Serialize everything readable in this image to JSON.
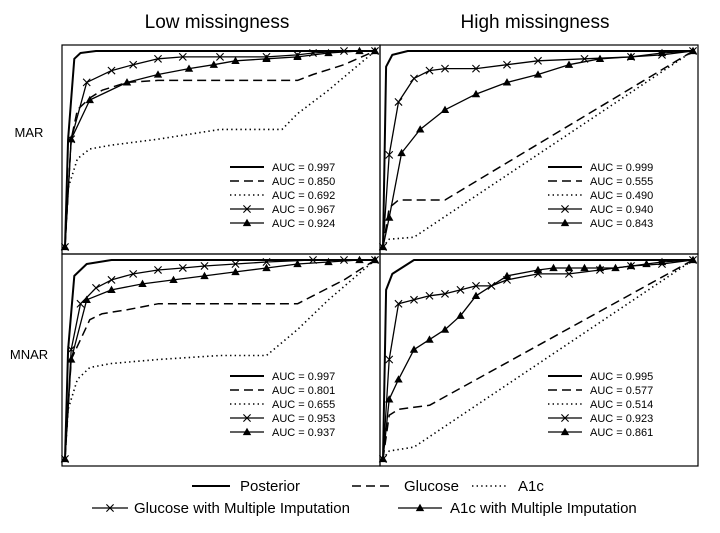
{
  "column_titles": [
    "Low missingness",
    "High missingness"
  ],
  "row_labels": [
    "MAR",
    "MNAR"
  ],
  "legend": {
    "row1": [
      "Posterior",
      "Glucose",
      "A1c"
    ],
    "row2": [
      "Glucose with Multiple Imputation",
      "A1c with Multiple Imputation"
    ]
  },
  "styles": {
    "line_color": "#000000",
    "series_styles": [
      "solid",
      "dashed",
      "dotted",
      "solid-cross",
      "solid-triangle"
    ]
  },
  "chart_data": [
    {
      "type": "line",
      "row": "MAR",
      "column": "Low missingness",
      "xlim": [
        0,
        1
      ],
      "ylim": [
        0,
        1
      ],
      "auc_labels": [
        "AUC = 0.997",
        "AUC = 0.850",
        "AUC = 0.692",
        "AUC = 0.967",
        "AUC = 0.924"
      ],
      "series": [
        {
          "name": "Posterior",
          "style": "solid",
          "x": [
            0,
            0.01,
            0.03,
            0.05,
            0.1,
            1
          ],
          "y": [
            0,
            0.55,
            0.96,
            0.99,
            1,
            1
          ]
        },
        {
          "name": "Glucose",
          "style": "dashed",
          "x": [
            0,
            0.02,
            0.04,
            0.08,
            0.12,
            0.2,
            0.3,
            0.5,
            0.75,
            0.8,
            0.9,
            1
          ],
          "y": [
            0,
            0.55,
            0.7,
            0.76,
            0.8,
            0.84,
            0.85,
            0.85,
            0.85,
            0.88,
            0.93,
            1
          ]
        },
        {
          "name": "A1c",
          "style": "dotted",
          "x": [
            0,
            0.01,
            0.04,
            0.08,
            0.15,
            0.3,
            0.5,
            0.7,
            0.75,
            0.85,
            1
          ],
          "y": [
            0,
            0.3,
            0.45,
            0.5,
            0.52,
            0.55,
            0.6,
            0.6,
            0.68,
            0.8,
            1
          ]
        },
        {
          "name": "Glucose with Multiple Imputation",
          "style": "solid-cross",
          "x": [
            0,
            0.02,
            0.07,
            0.15,
            0.22,
            0.3,
            0.38,
            0.5,
            0.65,
            0.75,
            0.8,
            0.9,
            1
          ],
          "y": [
            0,
            0.55,
            0.84,
            0.9,
            0.93,
            0.96,
            0.97,
            0.97,
            0.97,
            0.98,
            0.99,
            1,
            1
          ]
        },
        {
          "name": "A1c with Multiple Imputation",
          "style": "solid-triangle",
          "x": [
            0,
            0.02,
            0.08,
            0.2,
            0.3,
            0.4,
            0.48,
            0.55,
            0.65,
            0.75,
            0.85,
            0.95,
            1
          ],
          "y": [
            0,
            0.55,
            0.75,
            0.84,
            0.88,
            0.91,
            0.93,
            0.95,
            0.96,
            0.97,
            0.99,
            1,
            1
          ]
        }
      ]
    },
    {
      "type": "line",
      "row": "MAR",
      "column": "High missingness",
      "xlim": [
        0,
        1
      ],
      "ylim": [
        0,
        1
      ],
      "auc_labels": [
        "AUC = 0.999",
        "AUC = 0.555",
        "AUC = 0.490",
        "AUC = 0.940",
        "AUC = 0.843"
      ],
      "series": [
        {
          "name": "Posterior",
          "style": "solid",
          "x": [
            0,
            0.01,
            0.03,
            0.08,
            1
          ],
          "y": [
            0,
            0.92,
            0.98,
            1,
            1
          ]
        },
        {
          "name": "Glucose",
          "style": "dashed",
          "x": [
            0,
            0.02,
            0.05,
            0.2,
            1
          ],
          "y": [
            0,
            0.2,
            0.24,
            0.24,
            1
          ]
        },
        {
          "name": "A1c",
          "style": "dotted",
          "x": [
            0,
            0.02,
            0.1,
            1
          ],
          "y": [
            0,
            0.04,
            0.05,
            1
          ]
        },
        {
          "name": "Glucose with Multiple Imputation",
          "style": "solid-cross",
          "x": [
            0,
            0.02,
            0.05,
            0.1,
            0.15,
            0.2,
            0.3,
            0.4,
            0.5,
            0.65,
            0.8,
            0.9,
            1
          ],
          "y": [
            0,
            0.47,
            0.74,
            0.86,
            0.9,
            0.91,
            0.91,
            0.93,
            0.95,
            0.96,
            0.97,
            0.98,
            1
          ]
        },
        {
          "name": "A1c with Multiple Imputation",
          "style": "solid-triangle",
          "x": [
            0,
            0.02,
            0.06,
            0.12,
            0.2,
            0.3,
            0.4,
            0.5,
            0.6,
            0.7,
            0.8,
            0.9,
            1
          ],
          "y": [
            0,
            0.15,
            0.48,
            0.6,
            0.7,
            0.78,
            0.84,
            0.88,
            0.93,
            0.96,
            0.97,
            0.99,
            1
          ]
        }
      ]
    },
    {
      "type": "line",
      "row": "MNAR",
      "column": "Low missingness",
      "xlim": [
        0,
        1
      ],
      "ylim": [
        0,
        1
      ],
      "auc_labels": [
        "AUC = 0.997",
        "AUC = 0.801",
        "AUC = 0.655",
        "AUC = 0.953",
        "AUC = 0.937"
      ],
      "series": [
        {
          "name": "Posterior",
          "style": "solid",
          "x": [
            0,
            0.01,
            0.03,
            0.07,
            0.15,
            1
          ],
          "y": [
            0,
            0.55,
            0.92,
            0.98,
            1,
            1
          ]
        },
        {
          "name": "Glucose",
          "style": "dashed",
          "x": [
            0,
            0.02,
            0.05,
            0.08,
            0.12,
            0.2,
            0.3,
            0.5,
            0.75,
            0.8,
            0.9,
            1
          ],
          "y": [
            0,
            0.5,
            0.6,
            0.7,
            0.73,
            0.75,
            0.78,
            0.78,
            0.78,
            0.82,
            0.9,
            1
          ]
        },
        {
          "name": "A1c",
          "style": "dotted",
          "x": [
            0,
            0.01,
            0.04,
            0.08,
            0.15,
            0.3,
            0.5,
            0.65,
            0.75,
            0.85,
            1
          ],
          "y": [
            0,
            0.25,
            0.4,
            0.46,
            0.48,
            0.5,
            0.52,
            0.52,
            0.65,
            0.8,
            1
          ]
        },
        {
          "name": "Glucose with Multiple Imputation",
          "style": "solid-cross",
          "x": [
            0,
            0.02,
            0.05,
            0.1,
            0.15,
            0.22,
            0.3,
            0.38,
            0.45,
            0.55,
            0.65,
            0.8,
            0.9,
            1
          ],
          "y": [
            0,
            0.55,
            0.78,
            0.86,
            0.9,
            0.93,
            0.95,
            0.96,
            0.97,
            0.98,
            0.99,
            1,
            1,
            1
          ]
        },
        {
          "name": "A1c with Multiple Imputation",
          "style": "solid-triangle",
          "x": [
            0,
            0.02,
            0.07,
            0.15,
            0.25,
            0.35,
            0.45,
            0.55,
            0.65,
            0.75,
            0.85,
            0.95,
            1
          ],
          "y": [
            0,
            0.5,
            0.8,
            0.85,
            0.88,
            0.9,
            0.92,
            0.94,
            0.96,
            0.98,
            0.99,
            1,
            1
          ]
        }
      ]
    },
    {
      "type": "line",
      "row": "MNAR",
      "column": "High missingness",
      "xlim": [
        0,
        1
      ],
      "ylim": [
        0,
        1
      ],
      "auc_labels": [
        "AUC = 0.995",
        "AUC = 0.577",
        "AUC = 0.514",
        "AUC = 0.923",
        "AUC = 0.861"
      ],
      "series": [
        {
          "name": "Posterior",
          "style": "solid",
          "x": [
            0,
            0.01,
            0.03,
            0.1,
            1
          ],
          "y": [
            0,
            0.85,
            0.93,
            1,
            1
          ]
        },
        {
          "name": "Glucose",
          "style": "dashed",
          "x": [
            0,
            0.02,
            0.05,
            0.15,
            1
          ],
          "y": [
            0,
            0.22,
            0.25,
            0.27,
            1
          ]
        },
        {
          "name": "A1c",
          "style": "dotted",
          "x": [
            0,
            0.02,
            0.1,
            1
          ],
          "y": [
            0,
            0.04,
            0.06,
            1
          ]
        },
        {
          "name": "Glucose with Multiple Imputation",
          "style": "solid-cross",
          "x": [
            0,
            0.02,
            0.05,
            0.1,
            0.15,
            0.2,
            0.25,
            0.3,
            0.35,
            0.4,
            0.5,
            0.6,
            0.7,
            0.8,
            0.9,
            1
          ],
          "y": [
            0,
            0.5,
            0.78,
            0.8,
            0.82,
            0.83,
            0.85,
            0.87,
            0.87,
            0.9,
            0.93,
            0.93,
            0.95,
            0.97,
            0.98,
            1
          ]
        },
        {
          "name": "A1c with Multiple Imputation",
          "style": "solid-triangle",
          "x": [
            0,
            0.02,
            0.05,
            0.1,
            0.15,
            0.2,
            0.25,
            0.3,
            0.4,
            0.5,
            0.55,
            0.6,
            0.65,
            0.7,
            0.75,
            0.8,
            0.85,
            0.9,
            1
          ],
          "y": [
            0,
            0.3,
            0.4,
            0.55,
            0.6,
            0.65,
            0.72,
            0.82,
            0.92,
            0.95,
            0.96,
            0.96,
            0.96,
            0.96,
            0.96,
            0.97,
            0.98,
            0.99,
            1
          ]
        }
      ]
    }
  ]
}
